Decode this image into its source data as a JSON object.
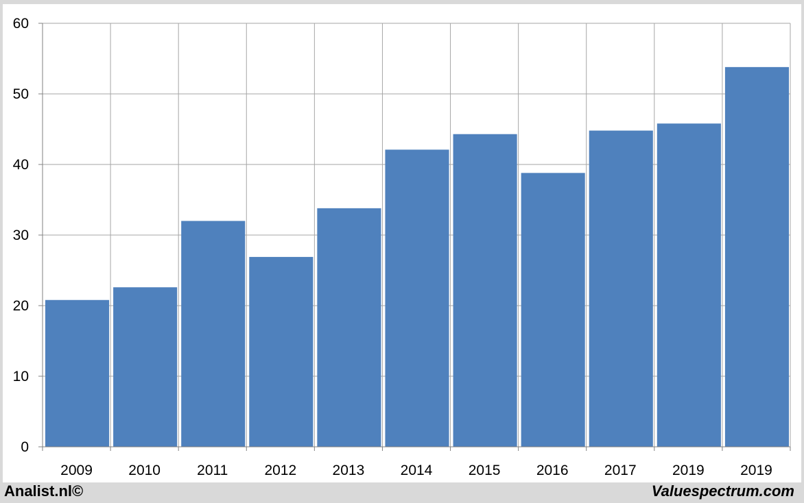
{
  "chart_data": {
    "type": "bar",
    "categories": [
      "2009",
      "2010",
      "2011",
      "2012",
      "2013",
      "2014",
      "2015",
      "2016",
      "2017",
      "2019",
      "2019"
    ],
    "values": [
      20.8,
      22.6,
      32.0,
      26.9,
      33.8,
      42.1,
      44.3,
      38.8,
      44.8,
      45.8,
      53.8
    ],
    "title": "",
    "xlabel": "",
    "ylabel": "",
    "ylim": [
      0,
      60
    ],
    "yticks": [
      "0",
      "10",
      "20",
      "30",
      "40",
      "50",
      "60"
    ],
    "grid": true,
    "bar_color": "#4f81bd",
    "grid_color": "#a6a6a6"
  },
  "footer": {
    "left_credit": "Analist.nl©",
    "right_credit": "Valuespectrum.com"
  }
}
